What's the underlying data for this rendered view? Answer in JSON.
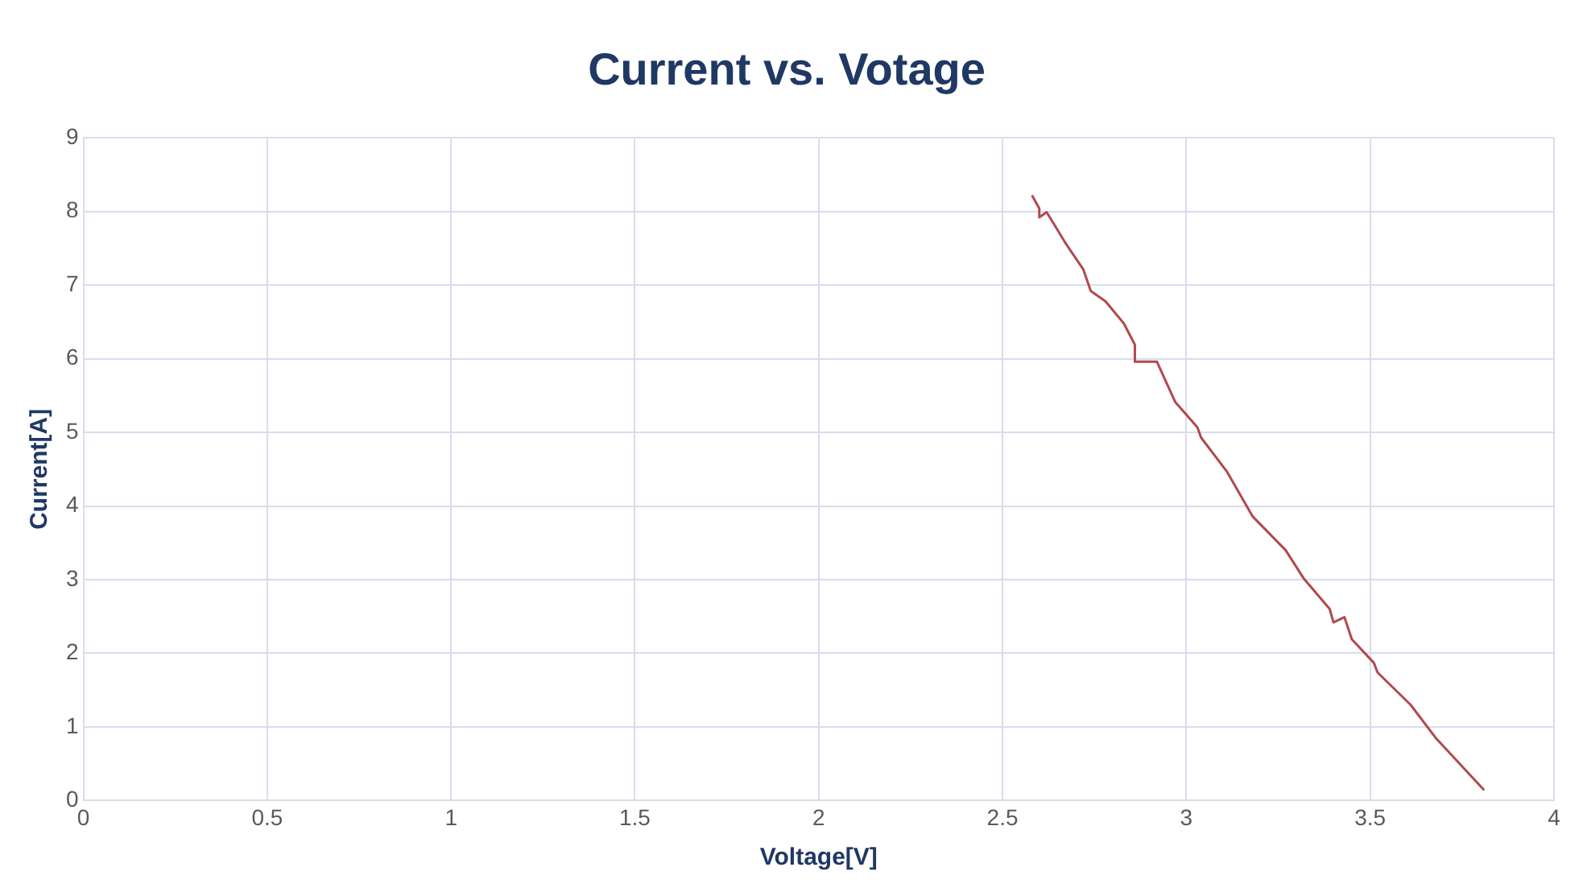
{
  "chart_data": {
    "type": "line",
    "title": "Current vs. Votage",
    "xlabel": "Voltage[V]",
    "ylabel": "Current[A]",
    "xlim": [
      0,
      4
    ],
    "xticks": [
      0,
      0.5,
      1,
      1.5,
      2,
      2.5,
      3,
      3.5,
      4
    ],
    "ylim": [
      0,
      9
    ],
    "yticks": [
      0,
      1,
      2,
      3,
      4,
      5,
      6,
      7,
      8,
      9
    ],
    "grid": true,
    "legend": false,
    "series": [
      {
        "color": "#b04a4e",
        "x": [
          2.58,
          2.6,
          2.6,
          2.62,
          2.67,
          2.72,
          2.74,
          2.78,
          2.83,
          2.86,
          2.86,
          2.92,
          2.97,
          3.03,
          3.04,
          3.11,
          3.18,
          3.27,
          3.32,
          3.39,
          3.4,
          3.43,
          3.45,
          3.51,
          3.52,
          3.61,
          3.68,
          3.81
        ],
        "values": [
          8.22,
          8.04,
          7.92,
          7.99,
          7.58,
          7.21,
          6.92,
          6.78,
          6.48,
          6.19,
          5.96,
          5.96,
          5.41,
          5.07,
          4.93,
          4.47,
          3.86,
          3.4,
          3.01,
          2.6,
          2.42,
          2.49,
          2.19,
          1.87,
          1.74,
          1.3,
          0.84,
          0.14
        ]
      }
    ]
  }
}
